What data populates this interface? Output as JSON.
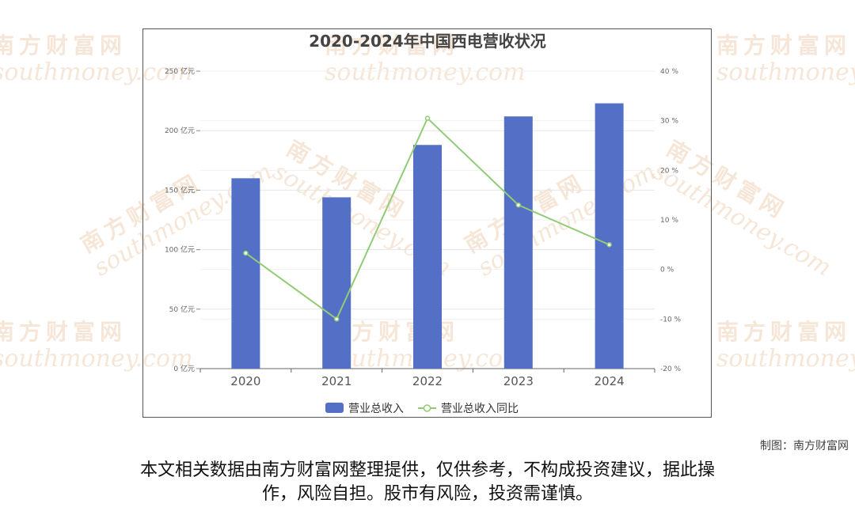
{
  "chart_data": {
    "type": "bar",
    "title": "2020-2024年中国西电营收状况",
    "categories": [
      "2020",
      "2021",
      "2022",
      "2023",
      "2024"
    ],
    "series": [
      {
        "name": "营业总收入",
        "type": "bar",
        "axis": "left",
        "values": [
          160,
          144,
          188,
          212,
          223
        ],
        "color": "#5470c6"
      },
      {
        "name": "营业总收入同比",
        "type": "line",
        "axis": "right",
        "values": [
          3.3,
          -10,
          30.5,
          13,
          5
        ],
        "color": "#91cc75"
      }
    ],
    "y_left": {
      "min": 0,
      "max": 250,
      "ticks": [
        0,
        50,
        100,
        150,
        200,
        250
      ],
      "tick_labels": [
        "0 亿元",
        "50 亿元",
        "100 亿元",
        "150 亿元",
        "200 亿元",
        "250 亿元"
      ]
    },
    "y_right": {
      "min": -20,
      "max": 40,
      "ticks": [
        -20,
        -10,
        0,
        10,
        20,
        30,
        40
      ],
      "tick_labels": [
        "-20 %",
        "-10 %",
        "0 %",
        "10 %",
        "20 %",
        "30 %",
        "40 %"
      ]
    },
    "grid": true,
    "legend": "bottom-center"
  },
  "watermark": {
    "cn": "南方财富网",
    "en": "southmoney.com",
    "color": "#f0d2b8"
  },
  "credit": "制图：南方财富网",
  "disclaimer_line1": "本文相关数据由南方财富网整理提供，仅供参考，不构成投资建议，据此操",
  "disclaimer_line2": "作，风险自担。股市有风险，投资需谨慎。"
}
